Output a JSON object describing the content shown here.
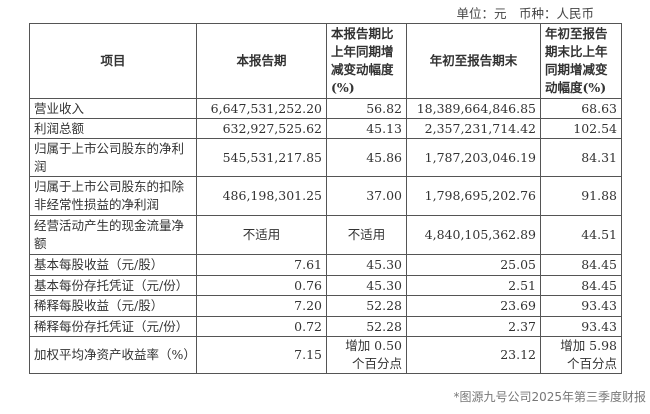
{
  "unit_label": "单位：元　币种：人民币",
  "headers": [
    "项目",
    "本报告期",
    "本报告期比上年同期增减变动幅度(%)",
    "年初至报告期末",
    "年初至报告期末比上年同期增减变动幅度(%)"
  ],
  "rows": [
    [
      "营业收入",
      "6,647,531,252.20",
      "56.82",
      "18,389,664,846.85",
      "68.63"
    ],
    [
      "利润总额",
      "632,927,525.62",
      "45.13",
      "2,357,231,714.42",
      "102.54"
    ],
    [
      "归属于上市公司股东的净利润",
      "545,531,217.85",
      "45.86",
      "1,787,203,046.19",
      "84.31"
    ],
    [
      "归属于上市公司股东的扣除非经常性损益的净利润",
      "486,198,301.25",
      "37.00",
      "1,798,695,202.76",
      "91.88"
    ],
    [
      "经营活动产生的现金流量净额",
      "不适用",
      "不适用",
      "4,840,105,362.89",
      "44.51"
    ],
    [
      "基本每股收益（元/股）",
      "7.61",
      "45.30",
      "25.05",
      "84.45"
    ],
    [
      "基本每份存托凭证（元/份）",
      "0.76",
      "45.30",
      "2.51",
      "84.45"
    ],
    [
      "稀释每股收益（元/股）",
      "7.20",
      "52.28",
      "23.69",
      "93.43"
    ],
    [
      "稀释每份存托凭证（元/份）",
      "0.72",
      "52.28",
      "2.37",
      "93.43"
    ],
    [
      "加权平均净资产收益率（%）",
      "7.15",
      "增加 0.50 个百分点",
      "23.12",
      "增加 5.98 个百分点"
    ]
  ],
  "caption": "*图源九号公司2025年第三季度财报"
}
